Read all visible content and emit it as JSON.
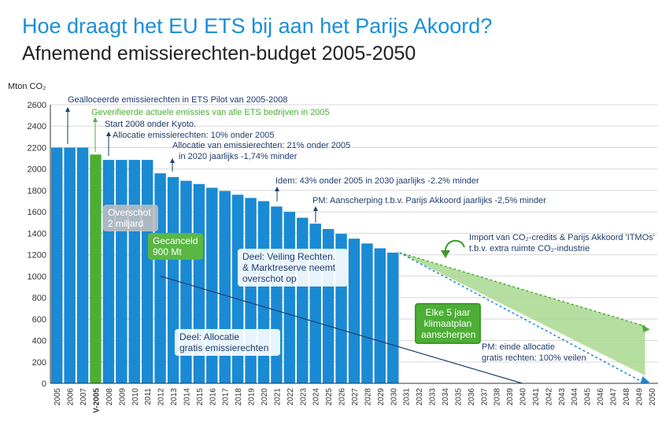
{
  "title": "Hoe draagt het EU ETS bij aan het Parijs Akoord?",
  "subtitle": "Afnemend emissierechten-budget 2005-2050",
  "chart_data": {
    "type": "bar",
    "ylabel": "Mton CO₂",
    "ylim": [
      0,
      2600
    ],
    "yticks": [
      0,
      200,
      400,
      600,
      800,
      1000,
      1200,
      1400,
      1600,
      1800,
      2000,
      2200,
      2400,
      2600
    ],
    "categories": [
      "2005",
      "2006",
      "2007",
      "V-2005",
      "2008",
      "2009",
      "2010",
      "2011",
      "2012",
      "2013",
      "2014",
      "2015",
      "2016",
      "2017",
      "2018",
      "2019",
      "2020",
      "2021",
      "2022",
      "2023",
      "2024",
      "2025",
      "2026",
      "2027",
      "2028",
      "2029",
      "2030",
      "2031",
      "2032",
      "2033",
      "2034",
      "2035",
      "2036",
      "2037",
      "2038",
      "2039",
      "2040",
      "2041",
      "2042",
      "2043",
      "2044",
      "2045",
      "2046",
      "2047",
      "2048",
      "2049",
      "2050"
    ],
    "values": [
      2200,
      2200,
      2200,
      2135,
      2085,
      2085,
      2085,
      2085,
      1960,
      1925,
      1890,
      1860,
      1825,
      1795,
      1760,
      1730,
      1700,
      1650,
      1600,
      1545,
      1490,
      1440,
      1395,
      1350,
      1305,
      1260,
      1220,
      null,
      null,
      null,
      null,
      null,
      null,
      null,
      null,
      null,
      null,
      null,
      null,
      null,
      null,
      null,
      null,
      null,
      null,
      null,
      null
    ],
    "highlight": {
      "category": "V-2005",
      "color": "#4cae34"
    },
    "bar_color": "#1a8ad4",
    "allocation_line": {
      "from": {
        "x": "2012",
        "y": 1000
      },
      "to": {
        "x": "2040",
        "y": 0
      },
      "color": "#1f3d6e"
    },
    "projection_green": {
      "from": {
        "x": "2030",
        "y": 1220
      },
      "to": {
        "x": "2050",
        "y": 460
      },
      "color": "#4cae34"
    },
    "projection_blue": {
      "from": {
        "x": "2030",
        "y": 1220
      },
      "to": {
        "x": "2050",
        "y": 0
      },
      "color": "#1a8ad4"
    },
    "annotations": [
      {
        "text": "Gealloceerde emissierechten in ETS Pilot van 2005-2008",
        "color": "#1f3d6e"
      },
      {
        "text": "Geverifieerde actuele emissies van alle ETS bedrijven in 2005",
        "color": "#4cae34"
      },
      {
        "text": "Start 2008 onder Kyoto.",
        "color": "#1f3d6e"
      },
      {
        "text": "Allocatie emissierechten: 10% onder 2005",
        "color": "#1f3d6e"
      },
      {
        "text": "Allocatie van emissierechten: 21% onder 2005",
        "color": "#1f3d6e"
      },
      {
        "text": "in 2020 jaarlijks -1,74% minder",
        "color": "#1f3d6e"
      },
      {
        "text": "Idem: 43% onder 2005 in 2030 jaarlijks -2.2% minder",
        "color": "#1f3d6e"
      },
      {
        "text": "PM: Aanscherping t.b.v. Parijs Akkoord jaarlijks -2,5% minder",
        "color": "#1f3d6e"
      }
    ],
    "boxes": {
      "overschot": "Overschot\n2 miljard",
      "gecanceld": "Gecanceld\n900 Mt",
      "veiling": "Deel: Veiling Rechten.\n& Marktreserve neemt\noverschot op",
      "allocatie": "Deel: Allocatie\ngratis emissierechten",
      "klimaatplan": "Elke 5 jaar\nklimaatplan\naanscherpen"
    },
    "notes": {
      "import_line1": "Import van CO₂-credits & Parijs Akkoord 'ITMOs'",
      "import_line2": "t.b.v. extra ruimte CO₂-industrie",
      "pm_line1": "PM: einde allocatie",
      "pm_line2": "gratis rechten: 100% veilen"
    }
  }
}
